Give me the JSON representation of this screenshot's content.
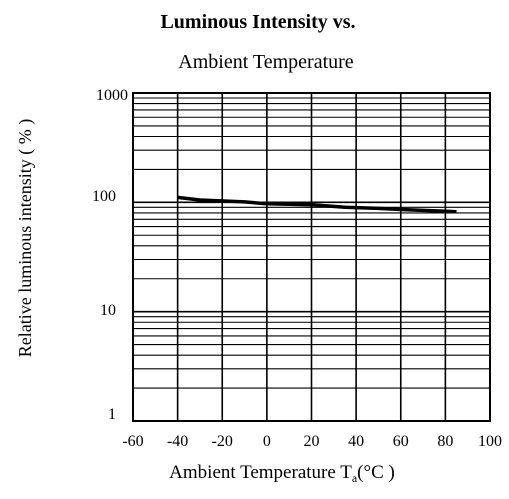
{
  "chart_data": {
    "type": "line",
    "title_line1": "Luminous Intensity vs.",
    "title_line2": "Ambient Temperature",
    "xlabel": "Ambient Temperature T",
    "xlabel_sub": "a",
    "xlabel_unit": "(°C )",
    "ylabel": "Relative luminous intensity ( % )",
    "xlim": [
      -60,
      100
    ],
    "ylim": [
      1,
      1000
    ],
    "y_scale": "log",
    "grid": true,
    "x_ticks": [
      "-60",
      "-40",
      "-20",
      "0",
      "20",
      "40",
      "60",
      "80",
      "100"
    ],
    "y_ticks": [
      "1000",
      "100",
      "10",
      "1"
    ],
    "series": [
      {
        "x": [
          -40,
          -30,
          -10,
          0,
          20,
          35,
          50,
          60,
          80,
          85
        ],
        "y": [
          111,
          105,
          101,
          97,
          95,
          90,
          88,
          86,
          83,
          82
        ]
      }
    ],
    "line_color": "#000000"
  }
}
